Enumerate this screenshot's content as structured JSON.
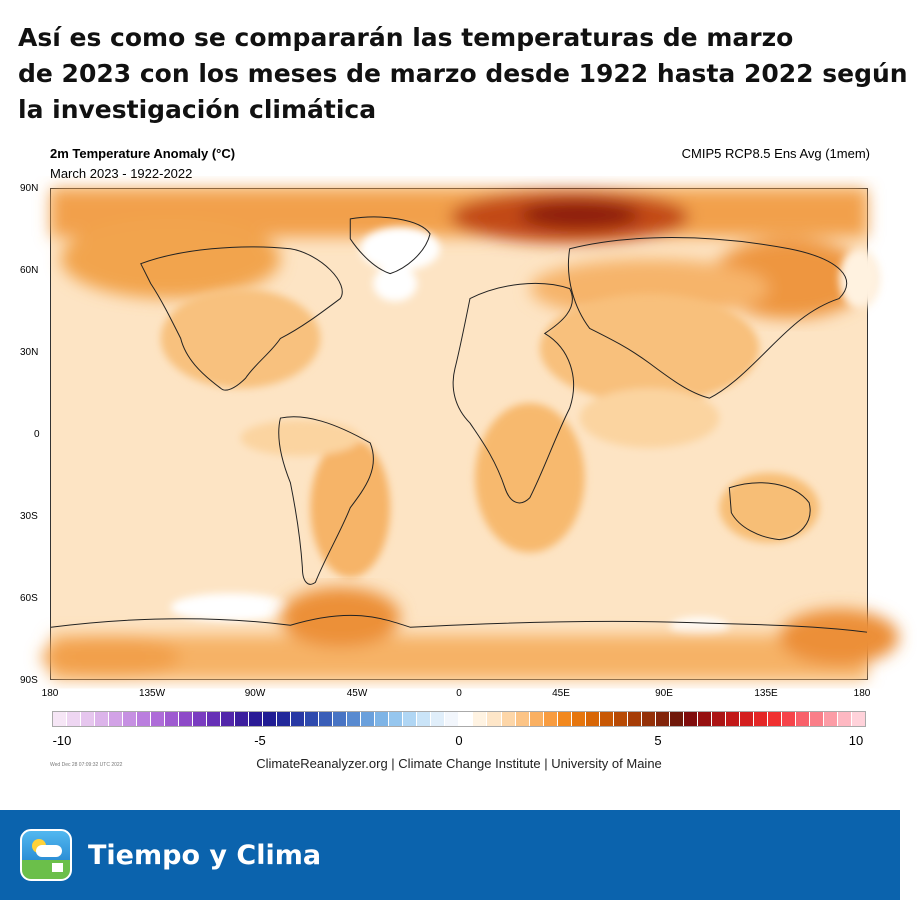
{
  "headline": {
    "line1": "Así es como se compararán las temperaturas de marzo",
    "line2": "de 2023 con los meses de marzo desde 1922 hasta 2022 según",
    "line3": "la investigación climática"
  },
  "map": {
    "title": "2m Temperature Anomaly (°C)",
    "subtitle": "March 2023 - 1922-2022",
    "model": "CMIP5 RCP8.5 Ens Avg (1mem)",
    "lat_labels": [
      "90N",
      "60N",
      "30N",
      "0",
      "30S",
      "60S",
      "90S"
    ],
    "lon_labels": [
      "180",
      "135W",
      "90W",
      "45W",
      "0",
      "45E",
      "90E",
      "135E",
      "180"
    ],
    "colors": {
      "ocean_base": "#fde4c4",
      "warm_light": "#fbd19a",
      "warm_mid": "#f4a54a",
      "warm_strong": "#e97a1c",
      "hot": "#a0290b",
      "near_zero": "#ffffff"
    }
  },
  "colorbar": {
    "tick_labels": [
      "-10",
      "-5",
      "0",
      "5",
      "10"
    ],
    "colors": [
      "#f6e6f6",
      "#eed6f2",
      "#e6c6ee",
      "#dcb4ea",
      "#d2a2e6",
      "#c690e2",
      "#ba7ede",
      "#ae6cd8",
      "#9e5ad0",
      "#8e4ac8",
      "#7a3cc0",
      "#6630b6",
      "#5226aa",
      "#3c1e9e",
      "#2a1a96",
      "#201c94",
      "#22289a",
      "#2838a4",
      "#2e4aae",
      "#3a5eb8",
      "#4874c4",
      "#588ad0",
      "#6aa0dc",
      "#7eb4e6",
      "#96c6ee",
      "#b0d6f4",
      "#cae4f8",
      "#e0eefa",
      "#f2f6fc",
      "#ffffff",
      "#fff3e2",
      "#fee6c8",
      "#fdd6a8",
      "#fcc486",
      "#fab062",
      "#f89c40",
      "#f2881e",
      "#e6760e",
      "#d86606",
      "#c85804",
      "#b84a04",
      "#a63c06",
      "#943008",
      "#82240a",
      "#70180a",
      "#800c0c",
      "#961010",
      "#ac1414",
      "#c21818",
      "#d41e1e",
      "#e42626",
      "#f03030",
      "#f6444a",
      "#f8606a",
      "#fa7e88",
      "#fc9ca6",
      "#feb8c2",
      "#ffd2da"
    ]
  },
  "timestamp": "Wed Dec 28 07:09:32 UTC 2022",
  "credits": "ClimateReanalyzer.org | Climate Change Institute | University of Maine",
  "footer": {
    "app_name": "Tiempo y Clima"
  }
}
